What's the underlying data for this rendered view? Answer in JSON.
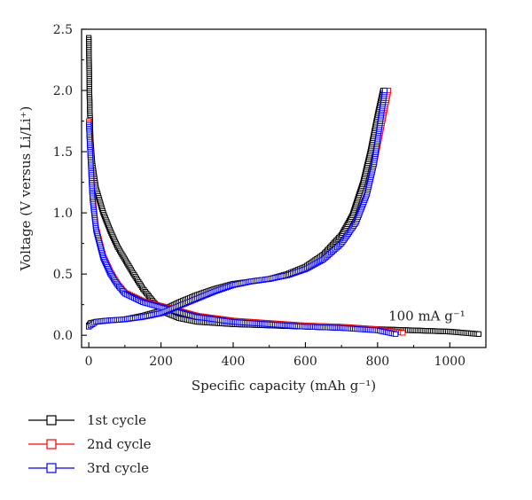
{
  "chart_data": {
    "type": "line",
    "title": "",
    "xlabel": "Specific capacity (mAh g⁻¹)",
    "ylabel": "Voltage (V versus Li/Li⁺)",
    "xlim": [
      -20,
      1100
    ],
    "ylim": [
      -0.1,
      2.5
    ],
    "xticks": [
      0,
      200,
      400,
      600,
      800,
      1000
    ],
    "yticks": [
      0.0,
      0.5,
      1.0,
      1.5,
      2.0,
      2.5
    ],
    "annotation": "100 mA g⁻¹",
    "grid": false,
    "legend_position": "bottom-left",
    "series": [
      {
        "name": "1st cycle",
        "color": "#000000",
        "discharge": {
          "x": [
            0,
            2,
            5,
            10,
            20,
            40,
            60,
            80,
            100,
            120,
            150,
            180,
            200,
            250,
            300,
            400,
            500,
            600,
            700,
            800,
            900,
            1000,
            1080
          ],
          "y": [
            2.43,
            1.95,
            1.6,
            1.4,
            1.2,
            1.0,
            0.85,
            0.72,
            0.62,
            0.52,
            0.38,
            0.27,
            0.2,
            0.14,
            0.11,
            0.09,
            0.08,
            0.07,
            0.06,
            0.05,
            0.04,
            0.03,
            0.01
          ]
        },
        "charge": {
          "x": [
            0,
            5,
            20,
            50,
            100,
            150,
            200,
            250,
            300,
            350,
            400,
            450,
            500,
            550,
            600,
            650,
            700,
            730,
            760,
            780,
            800,
            815
          ],
          "y": [
            0.08,
            0.1,
            0.11,
            0.12,
            0.13,
            0.16,
            0.2,
            0.27,
            0.33,
            0.38,
            0.42,
            0.44,
            0.46,
            0.5,
            0.56,
            0.66,
            0.82,
            0.98,
            1.25,
            1.5,
            1.8,
            2.0
          ]
        }
      },
      {
        "name": "2nd cycle",
        "color": "#ff0000",
        "discharge": {
          "x": [
            0,
            5,
            10,
            20,
            40,
            60,
            80,
            100,
            150,
            200,
            250,
            300,
            400,
            500,
            600,
            700,
            800,
            870
          ],
          "y": [
            1.75,
            1.45,
            1.15,
            0.88,
            0.65,
            0.52,
            0.42,
            0.35,
            0.28,
            0.24,
            0.2,
            0.16,
            0.12,
            0.1,
            0.08,
            0.07,
            0.05,
            0.02
          ]
        },
        "charge": {
          "x": [
            0,
            20,
            50,
            100,
            150,
            200,
            250,
            300,
            350,
            400,
            450,
            500,
            550,
            600,
            650,
            700,
            740,
            770,
            790,
            810,
            830
          ],
          "y": [
            0.07,
            0.11,
            0.12,
            0.13,
            0.15,
            0.18,
            0.24,
            0.3,
            0.36,
            0.41,
            0.44,
            0.46,
            0.49,
            0.54,
            0.62,
            0.75,
            0.92,
            1.15,
            1.4,
            1.7,
            2.0
          ]
        }
      },
      {
        "name": "3rd cycle",
        "color": "#0000ff",
        "discharge": {
          "x": [
            0,
            5,
            10,
            20,
            40,
            60,
            80,
            100,
            150,
            200,
            250,
            300,
            400,
            500,
            600,
            700,
            800,
            850
          ],
          "y": [
            1.72,
            1.42,
            1.12,
            0.86,
            0.63,
            0.5,
            0.41,
            0.34,
            0.27,
            0.23,
            0.19,
            0.15,
            0.11,
            0.09,
            0.07,
            0.06,
            0.04,
            0.01
          ]
        },
        "charge": {
          "x": [
            0,
            20,
            50,
            100,
            150,
            200,
            250,
            300,
            350,
            400,
            450,
            500,
            550,
            600,
            650,
            700,
            740,
            770,
            790,
            805,
            820
          ],
          "y": [
            0.07,
            0.11,
            0.12,
            0.13,
            0.15,
            0.18,
            0.24,
            0.3,
            0.36,
            0.41,
            0.44,
            0.46,
            0.49,
            0.54,
            0.62,
            0.75,
            0.92,
            1.15,
            1.4,
            1.7,
            2.0
          ]
        }
      }
    ]
  }
}
